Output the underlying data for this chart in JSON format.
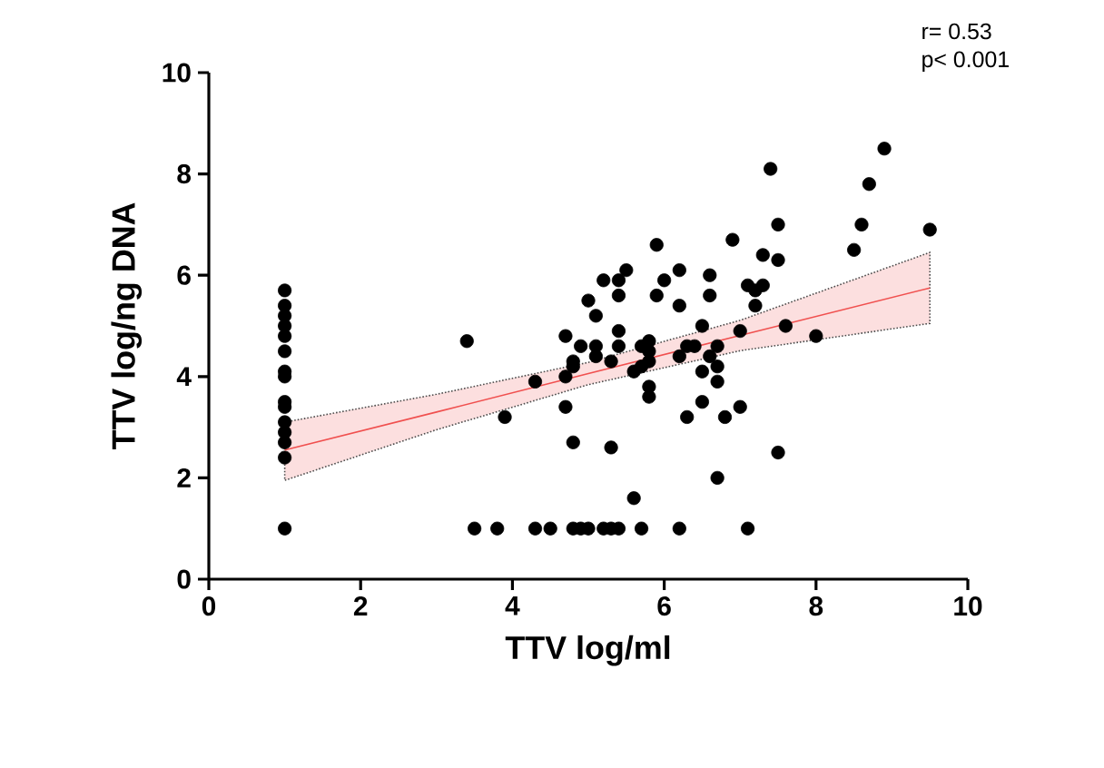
{
  "chart_data": {
    "type": "scatter",
    "xlabel": "TTV   log/ml",
    "ylabel": "TTV log/ng DNA",
    "xlim": [
      0,
      10
    ],
    "ylim": [
      0,
      10
    ],
    "xticks": [
      0,
      2,
      4,
      6,
      8,
      10
    ],
    "yticks": [
      0,
      2,
      4,
      6,
      8,
      10
    ],
    "grid": false,
    "marker": "circle",
    "annotations": [
      "r= 0.53",
      "p< 0.001"
    ],
    "series": [
      {
        "color": "#000000",
        "x": [
          1,
          1,
          1,
          1,
          1,
          1,
          1,
          1,
          1,
          1,
          1,
          1,
          1,
          1,
          1,
          3.4,
          3.5,
          3.8,
          3.9,
          4.3,
          4.3,
          4.5,
          4.7,
          4.7,
          4.7,
          4.8,
          4.8,
          4.8,
          4.8,
          4.9,
          4.9,
          5.0,
          5.0,
          5.1,
          5.1,
          5.1,
          5.2,
          5.2,
          5.3,
          5.3,
          5.3,
          5.4,
          5.4,
          5.4,
          5.4,
          5.4,
          5.5,
          5.6,
          5.6,
          5.7,
          5.7,
          5.7,
          5.8,
          5.8,
          5.8,
          5.8,
          5.8,
          5.9,
          5.9,
          6.0,
          6.2,
          6.2,
          6.2,
          6.2,
          6.3,
          6.3,
          6.4,
          6.5,
          6.5,
          6.5,
          6.6,
          6.6,
          6.6,
          6.7,
          6.7,
          6.7,
          6.7,
          6.8,
          6.9,
          7.0,
          7.0,
          7.1,
          7.1,
          7.2,
          7.2,
          7.3,
          7.3,
          7.4,
          7.5,
          7.5,
          7.5,
          7.6,
          8.0,
          8.5,
          8.6,
          8.7,
          8.9,
          9.5
        ],
        "values": [
          5.7,
          5.4,
          5.2,
          5.0,
          4.8,
          4.5,
          4.1,
          4.0,
          3.5,
          3.4,
          3.1,
          2.9,
          2.7,
          2.4,
          1.0,
          4.7,
          1,
          1,
          3.2,
          3.9,
          1,
          1,
          4.8,
          4.0,
          3.4,
          4.3,
          4.2,
          2.7,
          1,
          4.6,
          1,
          5.5,
          1,
          5.2,
          4.6,
          4.4,
          1,
          5.9,
          4.3,
          2.6,
          1,
          5.9,
          5.6,
          4.9,
          4.6,
          1,
          6.1,
          4.1,
          1.6,
          4.6,
          4.2,
          1,
          4.7,
          4.5,
          4.3,
          3.8,
          3.6,
          6.6,
          5.6,
          5.9,
          6.1,
          5.4,
          4.4,
          1,
          4.6,
          3.2,
          4.6,
          5.0,
          4.1,
          3.5,
          6.0,
          5.6,
          4.4,
          4.6,
          4.2,
          3.9,
          2.0,
          3.2,
          6.7,
          4.9,
          3.4,
          5.8,
          1,
          5.7,
          5.4,
          6.4,
          5.8,
          8.1,
          7.0,
          6.3,
          2.5,
          5.0,
          4.8,
          6.5,
          7.0,
          7.8,
          8.5,
          6.9
        ]
      },
      {
        "type": "line",
        "color": "#f0504f",
        "marker": "none",
        "x": [
          1,
          3,
          5,
          7,
          9.5
        ],
        "values": [
          2.55,
          3.3,
          4.06,
          4.81,
          5.75
        ],
        "lower": [
          1.95,
          2.95,
          3.84,
          4.51,
          5.05
        ],
        "upper": [
          3.1,
          3.65,
          4.28,
          5.11,
          6.45
        ]
      }
    ]
  }
}
